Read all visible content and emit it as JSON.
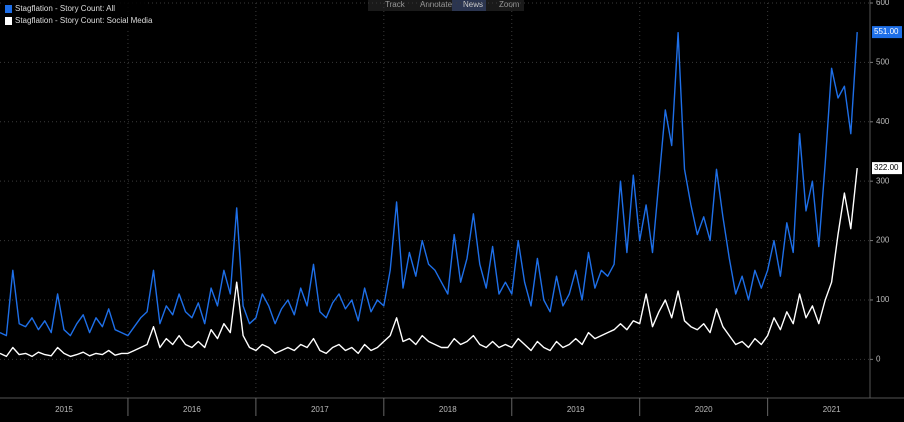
{
  "toolbar": [
    "Track",
    "Annotate",
    "News",
    "Zoom"
  ],
  "chart_data": {
    "type": "line",
    "x": [
      2015,
      2015.05,
      2015.1,
      2015.15,
      2015.2,
      2015.25,
      2015.3,
      2015.35,
      2015.4,
      2015.45,
      2015.5,
      2015.55,
      2015.6,
      2015.65,
      2015.7,
      2015.75,
      2015.8,
      2015.85,
      2015.9,
      2015.95,
      2016,
      2016.05,
      2016.1,
      2016.15,
      2016.2,
      2016.25,
      2016.3,
      2016.35,
      2016.4,
      2016.45,
      2016.5,
      2016.55,
      2016.6,
      2016.65,
      2016.7,
      2016.75,
      2016.8,
      2016.85,
      2016.9,
      2016.95,
      2017,
      2017.05,
      2017.1,
      2017.15,
      2017.2,
      2017.25,
      2017.3,
      2017.35,
      2017.4,
      2017.45,
      2017.5,
      2017.55,
      2017.6,
      2017.65,
      2017.7,
      2017.75,
      2017.8,
      2017.85,
      2017.9,
      2017.95,
      2018,
      2018.05,
      2018.1,
      2018.15,
      2018.2,
      2018.25,
      2018.3,
      2018.35,
      2018.4,
      2018.45,
      2018.5,
      2018.55,
      2018.6,
      2018.65,
      2018.7,
      2018.75,
      2018.8,
      2018.85,
      2018.9,
      2018.95,
      2019,
      2019.05,
      2019.1,
      2019.15,
      2019.2,
      2019.25,
      2019.3,
      2019.35,
      2019.4,
      2019.45,
      2019.5,
      2019.55,
      2019.6,
      2019.65,
      2019.7,
      2019.75,
      2019.8,
      2019.85,
      2019.9,
      2019.95,
      2020,
      2020.05,
      2020.1,
      2020.15,
      2020.2,
      2020.25,
      2020.3,
      2020.35,
      2020.4,
      2020.45,
      2020.5,
      2020.55,
      2020.6,
      2020.65,
      2020.7,
      2020.75,
      2020.8,
      2020.85,
      2020.9,
      2020.95,
      2021,
      2021.05,
      2021.1,
      2021.15,
      2021.2,
      2021.25,
      2021.3,
      2021.35,
      2021.4,
      2021.45,
      2021.5,
      2021.55,
      2021.6,
      2021.65,
      2021.7
    ],
    "series": [
      {
        "name": "Stagflation - Story Count: All",
        "color": "#1e6fe8",
        "last_label": "551.00",
        "values": [
          45,
          40,
          150,
          60,
          55,
          70,
          50,
          65,
          45,
          110,
          50,
          40,
          60,
          75,
          45,
          70,
          55,
          85,
          50,
          45,
          40,
          55,
          70,
          80,
          150,
          60,
          90,
          75,
          110,
          80,
          70,
          95,
          60,
          120,
          90,
          150,
          110,
          255,
          90,
          60,
          70,
          110,
          90,
          60,
          85,
          100,
          75,
          120,
          90,
          160,
          80,
          70,
          95,
          110,
          85,
          100,
          65,
          120,
          80,
          100,
          90,
          150,
          265,
          120,
          180,
          140,
          200,
          160,
          150,
          130,
          110,
          210,
          130,
          170,
          245,
          160,
          120,
          190,
          110,
          130,
          110,
          200,
          130,
          90,
          170,
          100,
          80,
          140,
          90,
          110,
          150,
          100,
          180,
          120,
          150,
          140,
          160,
          300,
          180,
          310,
          200,
          260,
          180,
          300,
          420,
          360,
          550,
          320,
          260,
          210,
          240,
          200,
          320,
          240,
          170,
          110,
          140,
          100,
          150,
          120,
          150,
          200,
          140,
          230,
          180,
          380,
          250,
          300,
          190,
          330,
          490,
          440,
          460,
          380,
          551
        ]
      },
      {
        "name": "Stagflation - Story Count: Social Media",
        "color": "#ffffff",
        "last_label": "322.00",
        "values": [
          10,
          5,
          20,
          8,
          10,
          5,
          12,
          8,
          6,
          20,
          10,
          5,
          8,
          12,
          6,
          10,
          8,
          15,
          7,
          10,
          10,
          15,
          20,
          25,
          55,
          20,
          35,
          25,
          40,
          25,
          20,
          30,
          20,
          50,
          35,
          60,
          45,
          130,
          40,
          20,
          15,
          25,
          20,
          10,
          15,
          20,
          15,
          25,
          20,
          35,
          15,
          10,
          20,
          25,
          15,
          20,
          10,
          25,
          15,
          20,
          30,
          40,
          70,
          30,
          35,
          25,
          40,
          30,
          25,
          20,
          20,
          35,
          25,
          30,
          40,
          25,
          20,
          30,
          20,
          25,
          20,
          35,
          25,
          15,
          30,
          20,
          15,
          30,
          20,
          25,
          35,
          25,
          45,
          35,
          40,
          45,
          50,
          60,
          50,
          65,
          60,
          110,
          55,
          80,
          100,
          70,
          115,
          65,
          55,
          50,
          60,
          45,
          85,
          55,
          40,
          25,
          30,
          20,
          35,
          25,
          40,
          70,
          50,
          80,
          60,
          110,
          70,
          90,
          60,
          100,
          130,
          210,
          280,
          220,
          322
        ]
      }
    ],
    "xlim": [
      2015,
      2021.8
    ],
    "xticks": [
      2015,
      2016,
      2017,
      2018,
      2019,
      2020,
      2021
    ],
    "ylim": [
      -60,
      600
    ],
    "yticks": [
      0,
      100,
      200,
      300,
      400,
      500,
      600
    ],
    "grid": true
  }
}
